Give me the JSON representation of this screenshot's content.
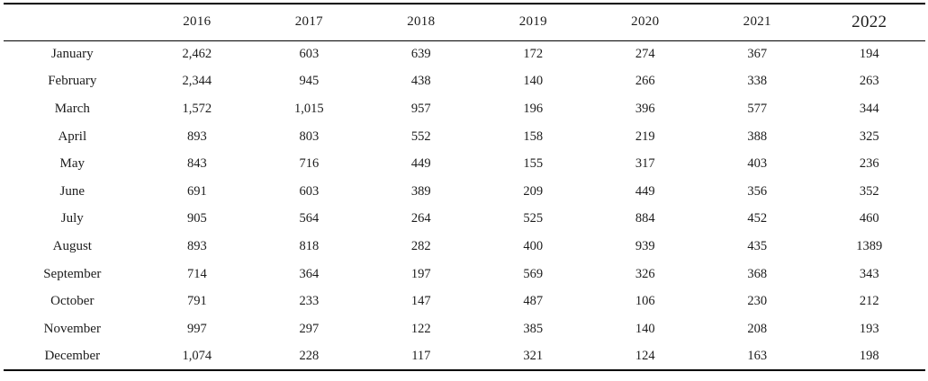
{
  "table": {
    "columns": [
      "",
      "2016",
      "2017",
      "2018",
      "2019",
      "2020",
      "2021",
      "2022"
    ],
    "rows": [
      {
        "month": "January",
        "values": [
          "2,462",
          "603",
          "639",
          "172",
          "274",
          "367",
          "194"
        ]
      },
      {
        "month": "February",
        "values": [
          "2,344",
          "945",
          "438",
          "140",
          "266",
          "338",
          "263"
        ]
      },
      {
        "month": "March",
        "values": [
          "1,572",
          "1,015",
          "957",
          "196",
          "396",
          "577",
          "344"
        ]
      },
      {
        "month": "April",
        "values": [
          "893",
          "803",
          "552",
          "158",
          "219",
          "388",
          "325"
        ]
      },
      {
        "month": "May",
        "values": [
          "843",
          "716",
          "449",
          "155",
          "317",
          "403",
          "236"
        ]
      },
      {
        "month": "June",
        "values": [
          "691",
          "603",
          "389",
          "209",
          "449",
          "356",
          "352"
        ]
      },
      {
        "month": "July",
        "values": [
          "905",
          "564",
          "264",
          "525",
          "884",
          "452",
          "460"
        ]
      },
      {
        "month": "August",
        "values": [
          "893",
          "818",
          "282",
          "400",
          "939",
          "435",
          "1389"
        ]
      },
      {
        "month": "September",
        "values": [
          "714",
          "364",
          "197",
          "569",
          "326",
          "368",
          "343"
        ]
      },
      {
        "month": "October",
        "values": [
          "791",
          "233",
          "147",
          "487",
          "106",
          "230",
          "212"
        ]
      },
      {
        "month": "November",
        "values": [
          "997",
          "297",
          "122",
          "385",
          "140",
          "208",
          "193"
        ]
      },
      {
        "month": "December",
        "values": [
          "1,074",
          "228",
          "117",
          "321",
          "124",
          "163",
          "198"
        ]
      }
    ]
  },
  "colors": {
    "background": "#ffffff",
    "text": "#1c1c1c",
    "border": "#000000"
  }
}
